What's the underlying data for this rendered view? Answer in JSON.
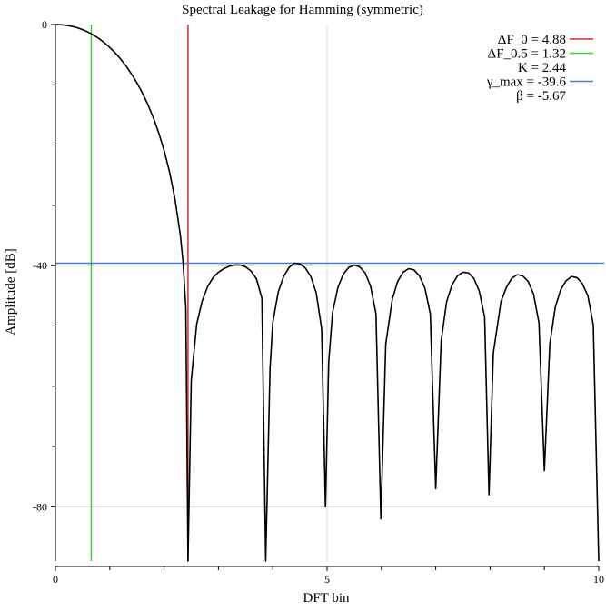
{
  "chart_data": {
    "type": "line",
    "title": "Spectral Leakage for Hamming (symmetric)",
    "xlabel": "DFT bin",
    "ylabel": "Amplitude [dB]",
    "xlim": [
      0,
      10
    ],
    "ylim": [
      -89,
      0
    ],
    "x_ticks_labeled": [
      {
        "value": 0,
        "label": "0"
      },
      {
        "value": 5,
        "label": "5"
      },
      {
        "value": 10,
        "label": "10"
      }
    ],
    "x_ticks_minor": [
      1,
      2,
      3,
      4,
      6,
      7,
      8,
      9
    ],
    "y_ticks_labeled": [
      {
        "value": 0,
        "label": "0"
      },
      {
        "value": -40,
        "label": "-40"
      },
      {
        "value": -80,
        "label": "-80"
      }
    ],
    "y_ticks_minor": [
      -10,
      -20,
      -30,
      -50,
      -60,
      -70
    ],
    "grid": true,
    "grid_x": [
      5
    ],
    "grid_y": [
      -40,
      -80
    ],
    "legend_position": "top-right",
    "series": [
      {
        "kind": "curve",
        "color": "#000000",
        "points": [
          [
            0.0,
            0.0
          ],
          [
            0.1,
            -0.03
          ],
          [
            0.2,
            -0.13
          ],
          [
            0.3,
            -0.29
          ],
          [
            0.4,
            -0.53
          ],
          [
            0.5,
            -0.85
          ],
          [
            0.6,
            -1.25
          ],
          [
            0.7,
            -1.74
          ],
          [
            0.8,
            -2.32
          ],
          [
            0.9,
            -3.01
          ],
          [
            1.0,
            -3.8
          ],
          [
            1.1,
            -4.7
          ],
          [
            1.2,
            -5.73
          ],
          [
            1.3,
            -6.89
          ],
          [
            1.4,
            -8.2
          ],
          [
            1.5,
            -9.68
          ],
          [
            1.6,
            -11.35
          ],
          [
            1.7,
            -13.25
          ],
          [
            1.8,
            -15.42
          ],
          [
            1.9,
            -17.94
          ],
          [
            2.0,
            -20.89
          ],
          [
            2.1,
            -24.45
          ],
          [
            2.2,
            -28.93
          ],
          [
            2.3,
            -35.04
          ],
          [
            2.35,
            -39.5
          ],
          [
            2.4,
            -47.0
          ],
          [
            2.44,
            -89.0
          ],
          [
            2.5,
            -59.0
          ],
          [
            2.6,
            -49.7
          ],
          [
            2.7,
            -45.9
          ],
          [
            2.8,
            -43.5
          ],
          [
            2.9,
            -42.0
          ],
          [
            3.0,
            -41.1
          ],
          [
            3.1,
            -40.5
          ],
          [
            3.2,
            -40.1
          ],
          [
            3.3,
            -39.9
          ],
          [
            3.4,
            -39.9
          ],
          [
            3.5,
            -40.2
          ],
          [
            3.6,
            -40.9
          ],
          [
            3.7,
            -42.2
          ],
          [
            3.8,
            -45.4
          ],
          [
            3.87,
            -89.0
          ],
          [
            3.95,
            -57.0
          ],
          [
            4.0,
            -49.5
          ],
          [
            4.1,
            -44.4
          ],
          [
            4.2,
            -41.8
          ],
          [
            4.3,
            -40.3
          ],
          [
            4.4,
            -39.6
          ],
          [
            4.5,
            -39.7
          ],
          [
            4.6,
            -40.4
          ],
          [
            4.7,
            -41.8
          ],
          [
            4.8,
            -44.5
          ],
          [
            4.9,
            -50.5
          ],
          [
            4.97,
            -80.0
          ],
          [
            5.03,
            -56.0
          ],
          [
            5.1,
            -47.8
          ],
          [
            5.2,
            -43.6
          ],
          [
            5.3,
            -41.4
          ],
          [
            5.4,
            -40.3
          ],
          [
            5.5,
            -39.9
          ],
          [
            5.6,
            -40.2
          ],
          [
            5.7,
            -41.2
          ],
          [
            5.8,
            -43.4
          ],
          [
            5.9,
            -48.0
          ],
          [
            5.99,
            -82.0
          ],
          [
            6.08,
            -53.0
          ],
          [
            6.2,
            -45.6
          ],
          [
            6.3,
            -42.6
          ],
          [
            6.4,
            -41.1
          ],
          [
            6.5,
            -40.5
          ],
          [
            6.6,
            -40.7
          ],
          [
            6.7,
            -41.7
          ],
          [
            6.8,
            -43.7
          ],
          [
            6.9,
            -48.0
          ],
          [
            7.0,
            -77.0
          ],
          [
            7.1,
            -52.5
          ],
          [
            7.2,
            -46.0
          ],
          [
            7.3,
            -43.2
          ],
          [
            7.4,
            -41.7
          ],
          [
            7.5,
            -41.1
          ],
          [
            7.6,
            -41.2
          ],
          [
            7.7,
            -42.1
          ],
          [
            7.8,
            -44.2
          ],
          [
            7.9,
            -48.5
          ],
          [
            7.98,
            -78.0
          ],
          [
            8.06,
            -54.5
          ],
          [
            8.2,
            -46.0
          ],
          [
            8.3,
            -43.6
          ],
          [
            8.4,
            -42.1
          ],
          [
            8.5,
            -41.5
          ],
          [
            8.6,
            -41.7
          ],
          [
            8.7,
            -42.6
          ],
          [
            8.8,
            -44.7
          ],
          [
            8.9,
            -49.5
          ],
          [
            9.0,
            -74.0
          ],
          [
            9.1,
            -53.0
          ],
          [
            9.2,
            -46.9
          ],
          [
            9.3,
            -44.0
          ],
          [
            9.4,
            -42.5
          ],
          [
            9.5,
            -41.8
          ],
          [
            9.6,
            -42.0
          ],
          [
            9.7,
            -43.0
          ],
          [
            9.8,
            -45.0
          ],
          [
            9.9,
            -49.8
          ],
          [
            10.0,
            -89.0
          ]
        ]
      }
    ],
    "markers": [
      {
        "name": "ΔF_0 = 4.88",
        "orientation": "vertical",
        "value": 2.44,
        "color": "#d42c2c"
      },
      {
        "name": "ΔF_0.5 = 1.32",
        "orientation": "vertical",
        "value": 0.66,
        "color": "#3ad43a"
      },
      {
        "name": "K = 2.44",
        "orientation": "none",
        "value": null,
        "color": null
      },
      {
        "name": "γ_max = -39.6",
        "orientation": "horizontal",
        "value": -39.6,
        "color": "#4a7fd4"
      },
      {
        "name": "β = -5.67",
        "orientation": "none",
        "value": null,
        "color": null
      }
    ]
  }
}
